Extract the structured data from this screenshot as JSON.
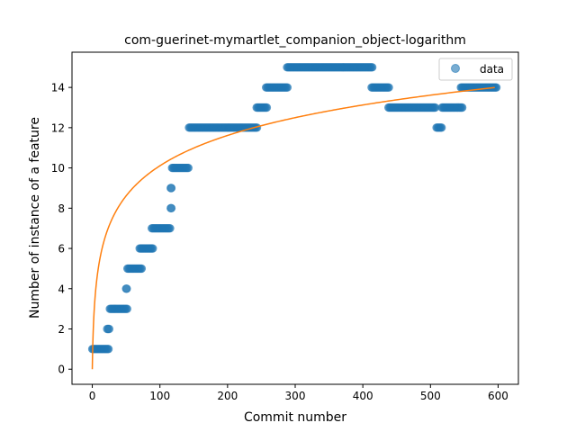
{
  "chart_data": {
    "type": "scatter",
    "title": "com-guerinet-mymartlet_companion_object-logarithm",
    "xlabel": "Commit number",
    "ylabel": "Number of instance of a feature",
    "xlim": [
      -30,
      630
    ],
    "ylim": [
      -0.75,
      15.75
    ],
    "xticks": [
      0,
      100,
      200,
      300,
      400,
      500,
      600
    ],
    "yticks": [
      0,
      2,
      4,
      6,
      8,
      10,
      12,
      14
    ],
    "grid": false,
    "legend": {
      "position": "top-right",
      "entries": [
        "data"
      ]
    },
    "series": [
      {
        "name": "data",
        "kind": "scatter",
        "color": "#1f77b4",
        "opacity": 0.6,
        "runs": [
          {
            "x_start": 0,
            "x_end": 24,
            "y": 1
          },
          {
            "x_start": 22,
            "x_end": 26,
            "y": 2
          },
          {
            "x_start": 26,
            "x_end": 52,
            "y": 3
          },
          {
            "x_start": 50,
            "x_end": 51,
            "y": 4
          },
          {
            "x_start": 52,
            "x_end": 74,
            "y": 5
          },
          {
            "x_start": 70,
            "x_end": 90,
            "y": 6
          },
          {
            "x_start": 88,
            "x_end": 116,
            "y": 7
          },
          {
            "x_start": 116,
            "x_end": 117,
            "y": 8
          },
          {
            "x_start": 116,
            "x_end": 117,
            "y": 9
          },
          {
            "x_start": 118,
            "x_end": 142,
            "y": 10
          },
          {
            "x_start": 143,
            "x_end": 244,
            "y": 12
          },
          {
            "x_start": 243,
            "x_end": 259,
            "y": 13
          },
          {
            "x_start": 257,
            "x_end": 289,
            "y": 14
          },
          {
            "x_start": 288,
            "x_end": 414,
            "y": 15
          },
          {
            "x_start": 413,
            "x_end": 439,
            "y": 14
          },
          {
            "x_start": 438,
            "x_end": 508,
            "y": 13
          },
          {
            "x_start": 509,
            "x_end": 517,
            "y": 12
          },
          {
            "x_start": 517,
            "x_end": 547,
            "y": 13
          },
          {
            "x_start": 545,
            "x_end": 598,
            "y": 14
          }
        ]
      },
      {
        "kind": "fit",
        "color": "#ff7f0e",
        "model": "y = a*ln(x+1)",
        "a": 2.19,
        "x_range": [
          0,
          595
        ]
      }
    ]
  }
}
